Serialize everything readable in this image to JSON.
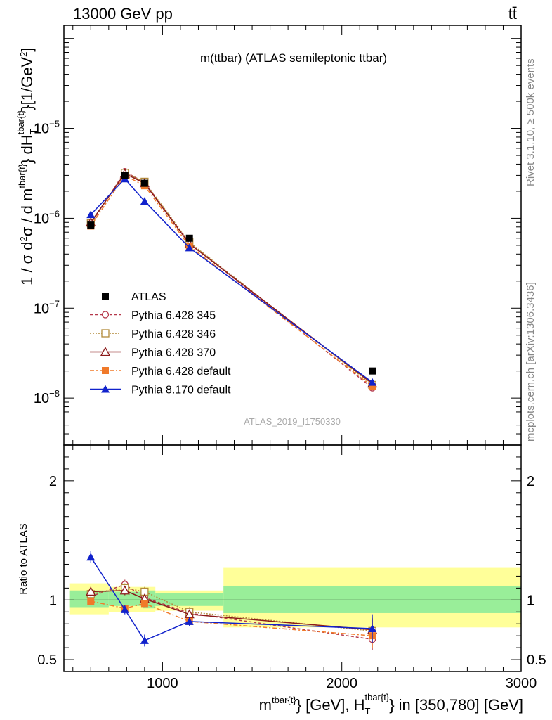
{
  "header": {
    "energy_label": "13000 GeV pp",
    "process_label": "tt̄"
  },
  "side": {
    "rivet": "Rivet 3.1.10, ≥ 500k events",
    "mcplots": "mcplots.cern.ch [arXiv:1306.3436]"
  },
  "chart_data": {
    "type": "line",
    "title": "m(ttbar) (ATLAS semileptonic ttbar)",
    "analysis_label": "ATLAS_2019_I1750330",
    "xlabel": "m^{tbar{t}} [GeV], H_T^{tbar{t}} in [350,780] [GeV]",
    "xlabel_parts": {
      "m": "m",
      "sup1": "tbar{t}",
      "mid": "} [GeV], H",
      "sub": "T",
      "sup2": "tbar{t}",
      "tail": "} in [350,780] [GeV]"
    },
    "ylabel": "1 / σ d²σ / d m^{tbar{t}} dH_T^{tbar{t}} [1/GeV²]",
    "ylabel_parts": {
      "pre": "1 / σ d",
      "s1": "2",
      "mid": "σ / d m",
      "s2": "tbar{t}",
      "mid2": "} dH",
      "sub": "T",
      "s3": "tbar{t}",
      "tail": "}[1/GeV",
      "s4": "2",
      "end": "]"
    },
    "ratio_ylabel": "Ratio to ATLAS",
    "xlim": [
      450,
      3000
    ],
    "ylim": [
      3e-09,
      0.00014
    ],
    "ylog": true,
    "ratio_ylim": [
      0.4,
      2.3
    ],
    "x_ticks": [
      1000,
      2000,
      3000
    ],
    "x_tick_labels": [
      "1000",
      "2000",
      "3000"
    ],
    "y_ticks": [
      {
        "mant": "10",
        "exp": "−8",
        "value": 1e-08
      },
      {
        "mant": "10",
        "exp": "−7",
        "value": 1e-07
      },
      {
        "mant": "10",
        "exp": "−6",
        "value": 1e-06
      },
      {
        "mant": "10",
        "exp": "−5",
        "value": 1e-05
      }
    ],
    "ratio_ticks": [
      0.5,
      1,
      2
    ],
    "ratio_tick_labels": [
      "0.5",
      "1",
      "2"
    ],
    "bin_edges": [
      480,
      700,
      980,
      1340,
      3000
    ],
    "bin_centers": [
      600,
      790,
      900,
      1150,
      2170
    ],
    "data": {
      "name": "ATLAS",
      "x": [
        600,
        790,
        900,
        1150,
        2170
      ],
      "y": [
        8.4e-07,
        3e-06,
        2.45e-06,
        6e-07,
        2e-08
      ]
    },
    "data_band_bins": [
      {
        "x0": 480,
        "x1": 700,
        "inner": [
          0.94,
          1.08
        ],
        "outer": [
          0.88,
          1.14
        ]
      },
      {
        "x0": 700,
        "x1": 890,
        "inner": [
          0.95,
          1.07
        ],
        "outer": [
          0.9,
          1.11
        ]
      },
      {
        "x0": 890,
        "x1": 960,
        "inner": [
          0.93,
          1.08
        ],
        "outer": [
          0.9,
          1.11
        ]
      },
      {
        "x0": 960,
        "x1": 1340,
        "inner": [
          0.95,
          1.06
        ],
        "outer": [
          0.91,
          1.08
        ]
      },
      {
        "x0": 1340,
        "x1": 3000,
        "inner": [
          0.89,
          1.12
        ],
        "outer": [
          0.77,
          1.27
        ]
      }
    ],
    "series": [
      {
        "name": "Pythia 6.428 345",
        "color": "#b5384a",
        "dash": "4,3",
        "marker": "open-circle",
        "y": [
          8.6e-07,
          3.3e-06,
          2.5e-06,
          5.3e-07,
          1.3e-08
        ],
        "ratio": [
          1.03,
          1.13,
          1.02,
          0.89,
          0.67
        ],
        "ratio_err": [
          0.04,
          0.04,
          0.04,
          0.04,
          0.09
        ]
      },
      {
        "name": "Pythia 6.428 346",
        "color": "#b28a3a",
        "dash": "2,2",
        "marker": "open-square",
        "y": [
          8.8e-07,
          3.2e-06,
          2.55e-06,
          5.4e-07,
          1.4e-08
        ],
        "ratio": [
          1.05,
          1.1,
          1.07,
          0.9,
          0.74
        ],
        "ratio_err": [
          0.04,
          0.04,
          0.04,
          0.04,
          0.1
        ]
      },
      {
        "name": "Pythia 6.428 370",
        "color": "#8b1a1a",
        "dash": "",
        "marker": "open-triangle",
        "y": [
          9e-07,
          3.15e-06,
          2.45e-06,
          5.2e-07,
          1.45e-08
        ],
        "ratio": [
          1.07,
          1.08,
          1.01,
          0.88,
          0.75
        ],
        "ratio_err": [
          0.04,
          0.04,
          0.04,
          0.04,
          0.1
        ]
      },
      {
        "name": "Pythia 6.428 default",
        "color": "#f07a2a",
        "dash": "6,3,2,3",
        "marker": "filled-square",
        "y": [
          8.2e-07,
          3e-06,
          2.3e-06,
          4.9e-07,
          1.35e-08
        ],
        "ratio": [
          0.99,
          0.93,
          0.97,
          0.82,
          0.7
        ],
        "ratio_err": [
          0.03,
          0.03,
          0.03,
          0.03,
          0.1
        ]
      },
      {
        "name": "Pythia 8.170 default",
        "color": "#1122cc",
        "dash": "",
        "marker": "filled-triangle",
        "y": [
          1.1e-06,
          2.75e-06,
          1.55e-06,
          4.7e-07,
          1.5e-08
        ],
        "ratio": [
          1.36,
          0.92,
          0.66,
          0.82,
          0.76
        ],
        "ratio_err": [
          0.05,
          0.04,
          0.05,
          0.04,
          0.12
        ]
      }
    ]
  }
}
